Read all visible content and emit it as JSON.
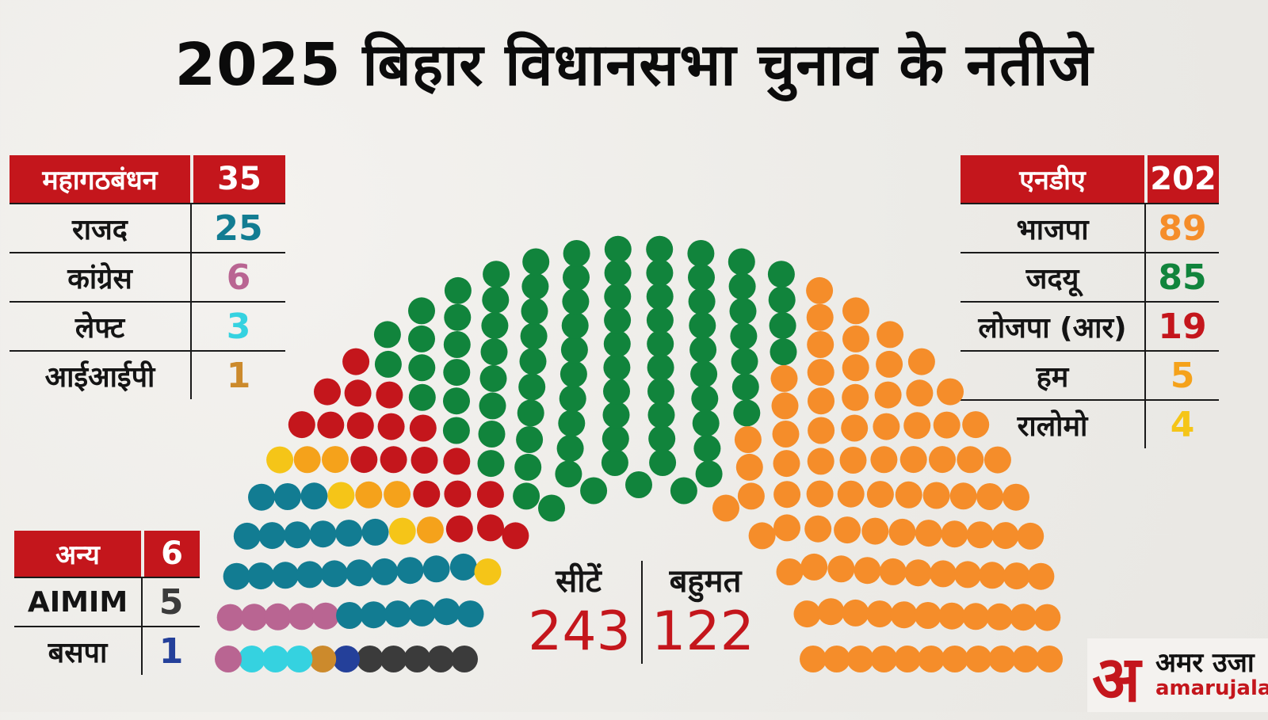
{
  "title": "2025 बिहार विधानसभा चुनाव के नतीजे",
  "colors": {
    "accent": "#c4161c",
    "rjd": "#127c92",
    "congress": "#b96592",
    "left": "#35d2e0",
    "iip": "#cc8a2c",
    "bjp": "#f58d2a",
    "jdu": "#11843c",
    "ljp": "#c4161c",
    "ham": "#f5a21b",
    "rlm": "#f5c518",
    "aimim": "#3b3b3b",
    "bsp": "#24409a"
  },
  "mahagathbandhan": {
    "name": "महागठबंधन",
    "total": "35",
    "rows": [
      {
        "name": "राजद",
        "seats": "25",
        "color": "#127c92"
      },
      {
        "name": "कांग्रेस",
        "seats": "6",
        "color": "#b96592"
      },
      {
        "name": "लेफ्ट",
        "seats": "3",
        "color": "#35d2e0"
      },
      {
        "name": "आईआईपी",
        "seats": "1",
        "color": "#cc8a2c"
      }
    ]
  },
  "nda": {
    "name": "एनडीए",
    "total": "202",
    "rows": [
      {
        "name": "भाजपा",
        "seats": "89",
        "color": "#f58d2a"
      },
      {
        "name": "जदयू",
        "seats": "85",
        "color": "#11843c"
      },
      {
        "name": "लोजपा (आर)",
        "seats": "19",
        "color": "#c4161c"
      },
      {
        "name": "हम",
        "seats": "5",
        "color": "#f5a21b"
      },
      {
        "name": "रालोमो",
        "seats": "4",
        "color": "#f5c518"
      }
    ]
  },
  "others": {
    "name": "अन्य",
    "total": "6",
    "rows": [
      {
        "name": "AIMIM",
        "seats": "5",
        "color": "#3b3b3b"
      },
      {
        "name": "बसपा",
        "seats": "1",
        "color": "#24409a"
      }
    ]
  },
  "center": {
    "seats_label": "सीटें",
    "seats_value": "243",
    "majority_label": "बहुमत",
    "majority_value": "122"
  },
  "logo": {
    "mark": "अ",
    "name": "अमर उजा",
    "site": "amarujala.c"
  },
  "chart_data": {
    "type": "parliament",
    "total_seats": 243,
    "majority": 122,
    "parties": [
      {
        "name": "AIMIM",
        "seats": 5,
        "color": "#3b3b3b"
      },
      {
        "name": "बसपा",
        "seats": 1,
        "color": "#24409a"
      },
      {
        "name": "आईआईपी",
        "seats": 1,
        "color": "#cc8a2c"
      },
      {
        "name": "लेफ्ट",
        "seats": 3,
        "color": "#35d2e0"
      },
      {
        "name": "कांग्रेस",
        "seats": 6,
        "color": "#b96592"
      },
      {
        "name": "राजद",
        "seats": 25,
        "color": "#127c92"
      },
      {
        "name": "रालोमो",
        "seats": 4,
        "color": "#f5c518"
      },
      {
        "name": "हम",
        "seats": 5,
        "color": "#f5a21b"
      },
      {
        "name": "लोजपा (आर)",
        "seats": 19,
        "color": "#c4161c"
      },
      {
        "name": "जदयू",
        "seats": 85,
        "color": "#11843c"
      },
      {
        "name": "भाजपा",
        "seats": 89,
        "color": "#f58d2a"
      }
    ]
  }
}
